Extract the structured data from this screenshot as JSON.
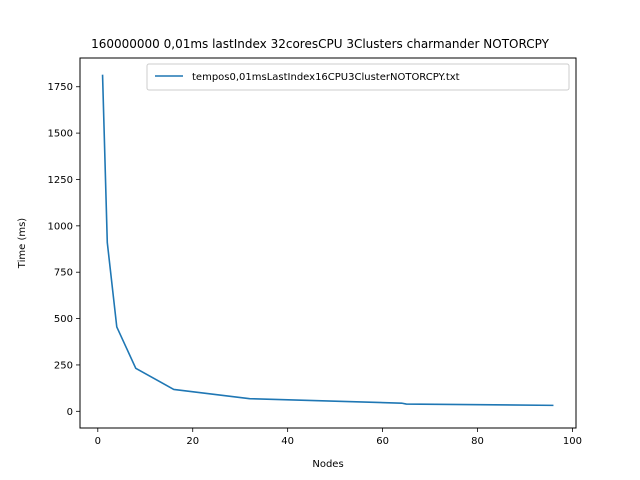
{
  "chart_data": {
    "type": "line",
    "title": "160000000 0,01ms lastIndex 32coresCPU 3Clusters charmander NOTORCPY",
    "xlabel": "Nodes",
    "ylabel": "Time (ms)",
    "xlim": [
      -3.75,
      100.75
    ],
    "ylim": [
      -90,
      1905
    ],
    "xticks": [
      0,
      20,
      40,
      60,
      80,
      100
    ],
    "yticks": [
      0,
      250,
      500,
      750,
      1000,
      1250,
      1500,
      1750
    ],
    "grid": false,
    "legend_position": "top-right",
    "series": [
      {
        "name": "tempos0,01msLastIndex16CPU3ClusterNOTORCPY.txt",
        "color": "#1f77b4",
        "x": [
          1,
          2,
          4,
          8,
          16,
          32,
          64,
          65,
          96
        ],
        "y": [
          1815,
          910,
          455,
          232,
          118,
          68,
          44,
          39,
          32
        ]
      }
    ]
  }
}
